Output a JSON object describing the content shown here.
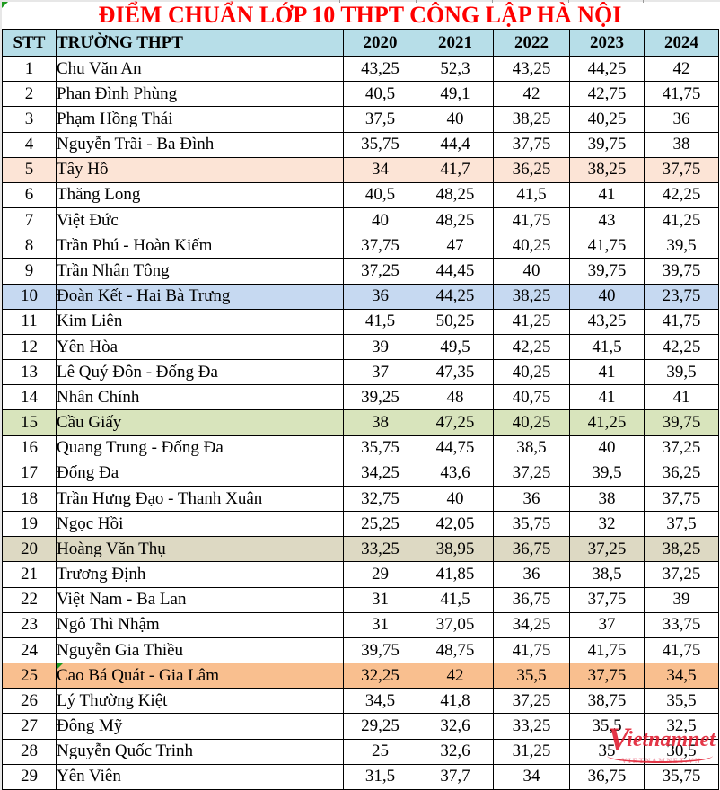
{
  "title": "ĐIỂM CHUẨN LỚP 10 THPT CÔNG LẬP HÀ NỘI",
  "colors": {
    "title_text": "#ff0000",
    "header_bg": "#b7dee8",
    "highlight_peach": "#fce4d6",
    "highlight_blue": "#c6d9f1",
    "highlight_green": "#d8e4bc",
    "highlight_tan": "#ddd9c3",
    "highlight_orange": "#f9bf8f",
    "watermark_red": "#e11b2e"
  },
  "table": {
    "columns": [
      "STT",
      "TRƯỜNG THPT",
      "2020",
      "2021",
      "2022",
      "2023",
      "2024"
    ],
    "rows": [
      {
        "stt": "1",
        "school": "Chu Văn An",
        "scores": [
          "43,25",
          "52,3",
          "43,25",
          "44,25",
          "42"
        ],
        "highlight": null
      },
      {
        "stt": "2",
        "school": "Phan Đình Phùng",
        "scores": [
          "40,5",
          "49,1",
          "42",
          "42,75",
          "41,75"
        ],
        "highlight": null
      },
      {
        "stt": "3",
        "school": "Phạm Hồng Thái",
        "scores": [
          "37,5",
          "40",
          "38,25",
          "40,25",
          "36"
        ],
        "highlight": null
      },
      {
        "stt": "4",
        "school": "Nguyễn Trãi - Ba Đình",
        "scores": [
          "35,75",
          "44,4",
          "37,75",
          "39,75",
          "38"
        ],
        "highlight": null
      },
      {
        "stt": "5",
        "school": "Tây Hồ",
        "scores": [
          "34",
          "41,7",
          "36,25",
          "38,25",
          "37,75"
        ],
        "highlight": "highlight_peach"
      },
      {
        "stt": "6",
        "school": "Thăng Long",
        "scores": [
          "40,5",
          "48,25",
          "41,5",
          "41",
          "42,25"
        ],
        "highlight": null
      },
      {
        "stt": "7",
        "school": "Việt Đức",
        "scores": [
          "40",
          "48,25",
          "41,75",
          "43",
          "41,25"
        ],
        "highlight": null
      },
      {
        "stt": "8",
        "school": "Trần Phú - Hoàn Kiếm",
        "scores": [
          "37,75",
          "47",
          "40,25",
          "41,75",
          "39,5"
        ],
        "highlight": null
      },
      {
        "stt": "9",
        "school": "Trần Nhân Tông",
        "scores": [
          "37,25",
          "44,45",
          "40",
          "39,75",
          "39,75"
        ],
        "highlight": null
      },
      {
        "stt": "10",
        "school": "Đoàn Kết - Hai Bà Trưng",
        "scores": [
          "36",
          "44,25",
          "38,25",
          "40",
          "23,75"
        ],
        "highlight": "highlight_blue"
      },
      {
        "stt": "11",
        "school": "Kim Liên",
        "scores": [
          "41,5",
          "50,25",
          "41,25",
          "43,25",
          "41,75"
        ],
        "highlight": null
      },
      {
        "stt": "12",
        "school": "Yên Hòa",
        "scores": [
          "39",
          "49,5",
          "42,25",
          "41,5",
          "42,25"
        ],
        "highlight": null
      },
      {
        "stt": "13",
        "school": "Lê Quý Đôn - Đống Đa",
        "scores": [
          "37",
          "47,35",
          "40,25",
          "41",
          "39,5"
        ],
        "highlight": null
      },
      {
        "stt": "14",
        "school": "Nhân Chính",
        "scores": [
          "39,25",
          "48",
          "40,75",
          "41",
          "41"
        ],
        "highlight": null
      },
      {
        "stt": "15",
        "school": "Cầu Giấy",
        "scores": [
          "38",
          "47,25",
          "40,25",
          "41,25",
          "39,75"
        ],
        "highlight": "highlight_green"
      },
      {
        "stt": "16",
        "school": "Quang Trung - Đống Đa",
        "scores": [
          "35,75",
          "44,75",
          "38,5",
          "40",
          "37,25"
        ],
        "highlight": null
      },
      {
        "stt": "17",
        "school": "Đống Đa",
        "scores": [
          "34,25",
          "43,6",
          "37,25",
          "39,5",
          "36,25"
        ],
        "highlight": null
      },
      {
        "stt": "18",
        "school": "Trần Hưng Đạo - Thanh Xuân",
        "scores": [
          "32,75",
          "40",
          "36",
          "38",
          "37,75"
        ],
        "highlight": null
      },
      {
        "stt": "19",
        "school": "Ngọc Hồi",
        "scores": [
          "25,25",
          "42,05",
          "35,75",
          "32",
          "37,5"
        ],
        "highlight": null
      },
      {
        "stt": "20",
        "school": "Hoàng Văn Thụ",
        "scores": [
          "33,25",
          "38,95",
          "36,75",
          "37,25",
          "38,25"
        ],
        "highlight": "highlight_tan"
      },
      {
        "stt": "21",
        "school": "Trương Định",
        "scores": [
          "29",
          "41,85",
          "36",
          "38,5",
          "37,25"
        ],
        "highlight": null
      },
      {
        "stt": "22",
        "school": "Việt Nam - Ba Lan",
        "scores": [
          "31",
          "41,5",
          "36,75",
          "37,75",
          "39"
        ],
        "highlight": null
      },
      {
        "stt": "23",
        "school": "Ngô Thì Nhậm",
        "scores": [
          "31",
          "37,05",
          "34,25",
          "37",
          "33,75"
        ],
        "highlight": null
      },
      {
        "stt": "24",
        "school": "Nguyễn Gia Thiều",
        "scores": [
          "39,75",
          "48,75",
          "41,75",
          "41,75",
          "41,75"
        ],
        "highlight": null
      },
      {
        "stt": "25",
        "school": "Cao Bá Quát - Gia Lâm",
        "scores": [
          "32,25",
          "42",
          "35,5",
          "37,75",
          "34,5"
        ],
        "highlight": "highlight_orange",
        "corner_mark": true
      },
      {
        "stt": "26",
        "school": "Lý Thường Kiệt",
        "scores": [
          "34,5",
          "41,8",
          "37,25",
          "38,75",
          "35,5"
        ],
        "highlight": null
      },
      {
        "stt": "27",
        "school": "Đông Mỹ",
        "scores": [
          "29,25",
          "32,6",
          "33,25",
          "35,5",
          "32,5"
        ],
        "highlight": null
      },
      {
        "stt": "28",
        "school": "Nguyễn Quốc Trinh",
        "scores": [
          "25",
          "32,6",
          "31,25",
          "35",
          "30,5"
        ],
        "highlight": null
      },
      {
        "stt": "29",
        "school": "Yên Viên",
        "scores": [
          "31,5",
          "37,7",
          "34",
          "36,75",
          "35,75"
        ],
        "highlight": null
      }
    ]
  },
  "watermark": {
    "initial": "V",
    "text": "ietnamnet",
    "subtext": "VIETNAMNET.VN"
  }
}
